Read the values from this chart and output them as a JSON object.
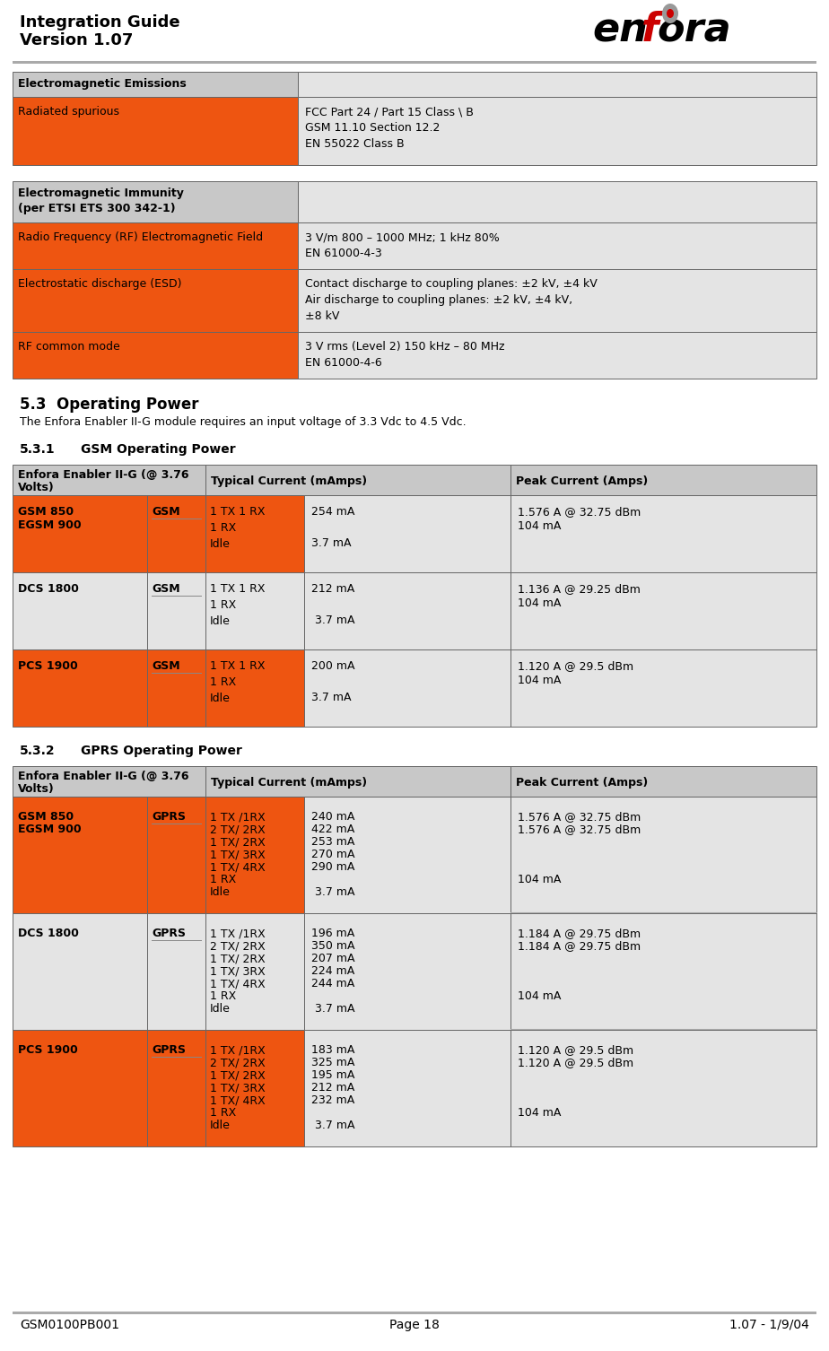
{
  "header_left_line1": "Integration Guide",
  "header_left_line2": "Version 1.07",
  "footer_left": "GSM0100PB001",
  "footer_center": "Page 18",
  "footer_right": "1.07 - 1/9/04",
  "orange": "#EE5511",
  "light_gray_bg": "#C8C8C8",
  "lighter_gray_bg": "#E4E4E4",
  "white": "#FFFFFF",
  "black": "#000000",
  "border_color": "#666666"
}
